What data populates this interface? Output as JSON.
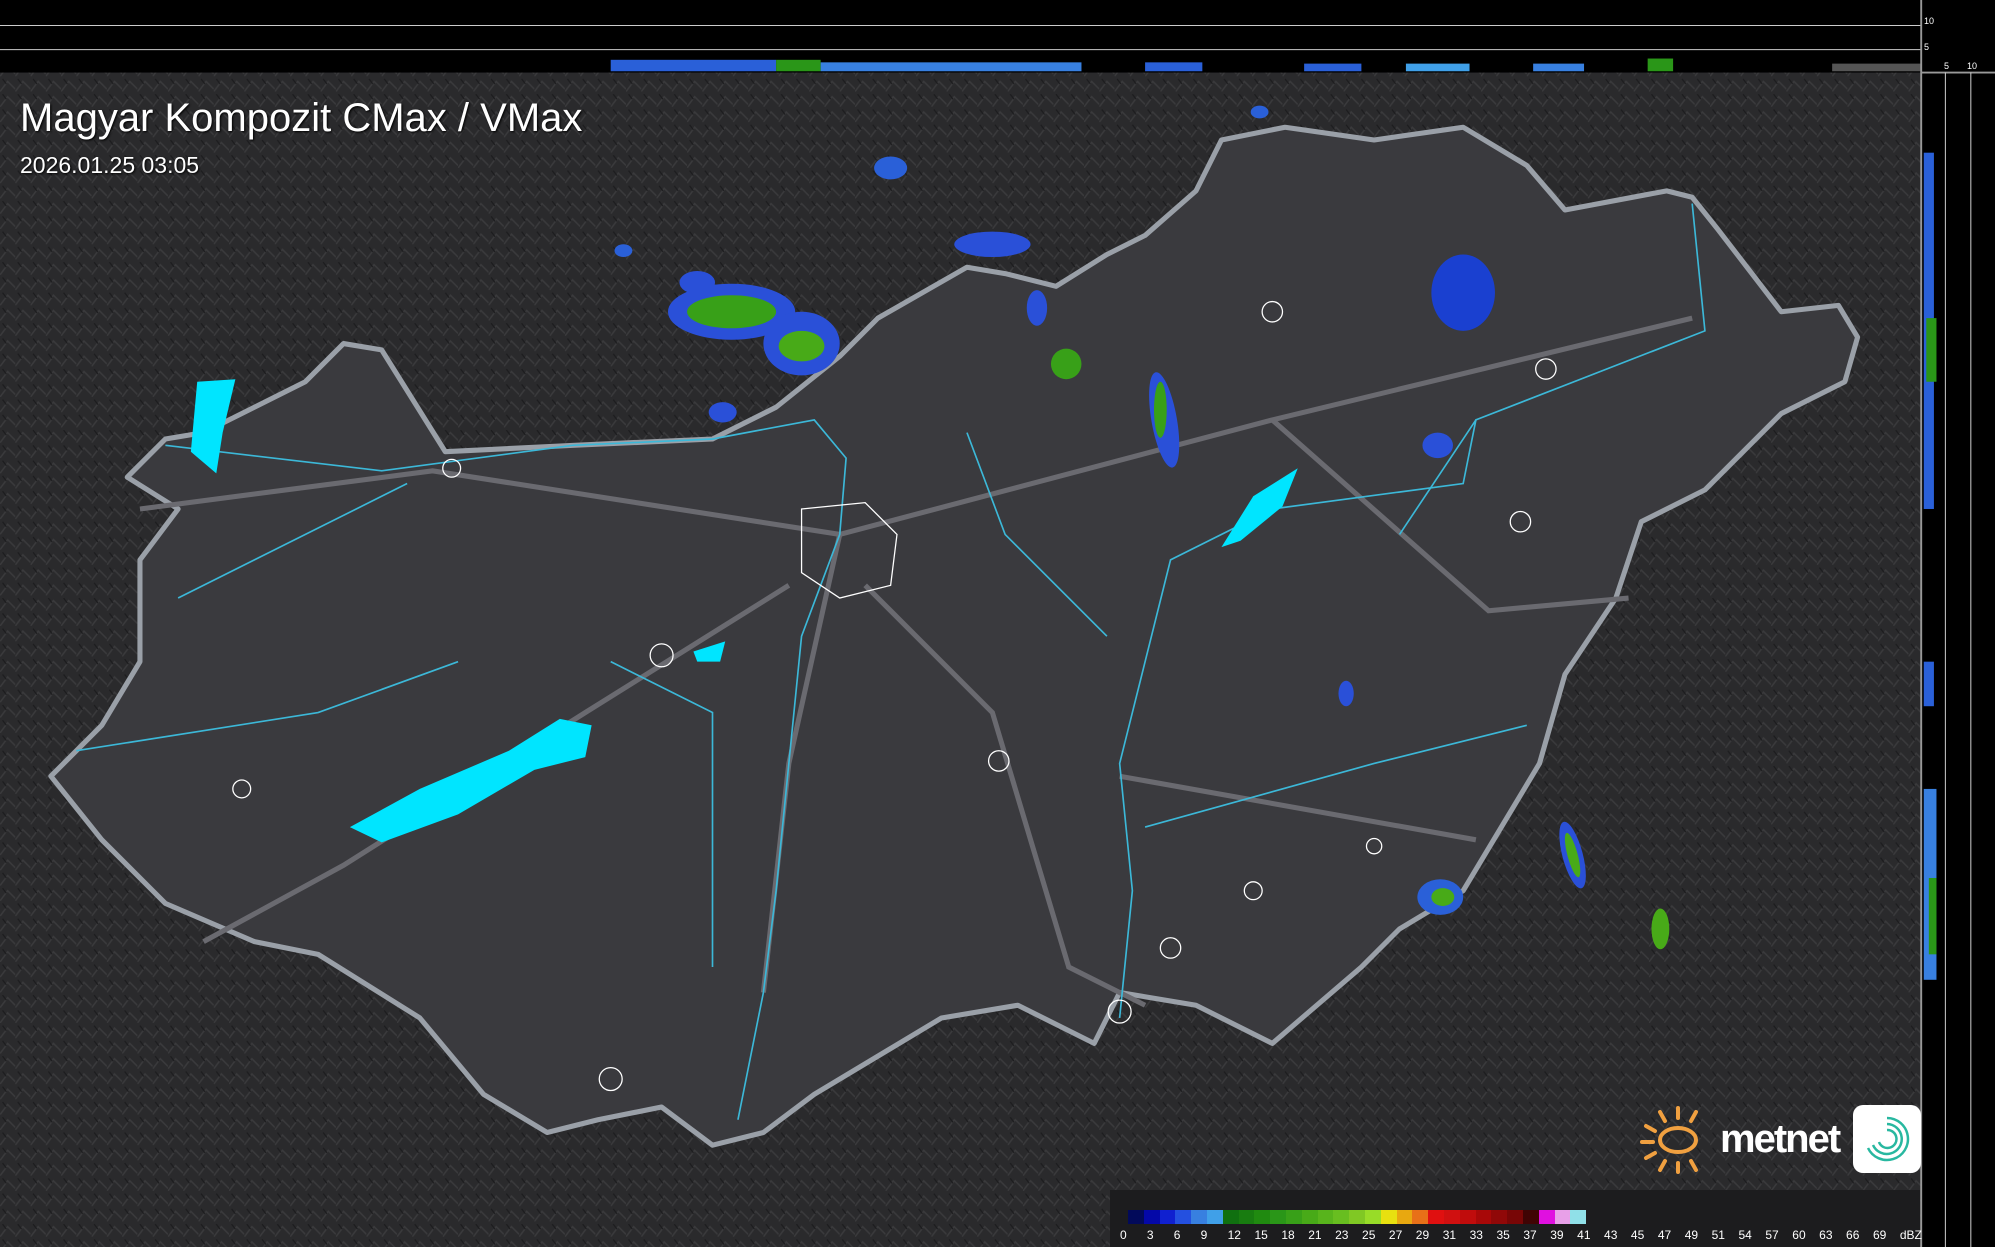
{
  "title": "Magyar Kompozit CMax / VMax",
  "timestamp": "2026.01.25 03:05",
  "brand": {
    "name": "metnet",
    "sun_color": "#f0a040",
    "app_icon": "spiral-logo-icon"
  },
  "profile_axes": {
    "top_ticks": [
      "10",
      "5"
    ],
    "side_ticks": [
      "5",
      "10"
    ]
  },
  "legend": {
    "unit": "dBZ",
    "labels": [
      "0",
      "3",
      "6",
      "9",
      "12",
      "15",
      "18",
      "21",
      "23",
      "25",
      "27",
      "29",
      "31",
      "33",
      "35",
      "37",
      "39",
      "41",
      "43",
      "45",
      "47",
      "49",
      "51",
      "54",
      "57",
      "60",
      "63",
      "66",
      "69"
    ],
    "colors": [
      "#020a5a",
      "#0408a8",
      "#1020d0",
      "#2450e0",
      "#3880e0",
      "#40a0e8",
      "#107010",
      "#187c10",
      "#208a10",
      "#2a9618",
      "#38a018",
      "#48aa18",
      "#58b41c",
      "#68be20",
      "#80c824",
      "#98dc28",
      "#e8e010",
      "#e8a810",
      "#e87018",
      "#e01010",
      "#d01010",
      "#c00c0c",
      "#a80808",
      "#900808",
      "#780606",
      "#400404",
      "#e010e0",
      "#e8a0e8",
      "#90e0e8"
    ]
  },
  "colors": {
    "lake": "#00e5ff",
    "river": "#3cb8d8",
    "border": "#9aa0a8",
    "land": "#3a3a3e"
  }
}
